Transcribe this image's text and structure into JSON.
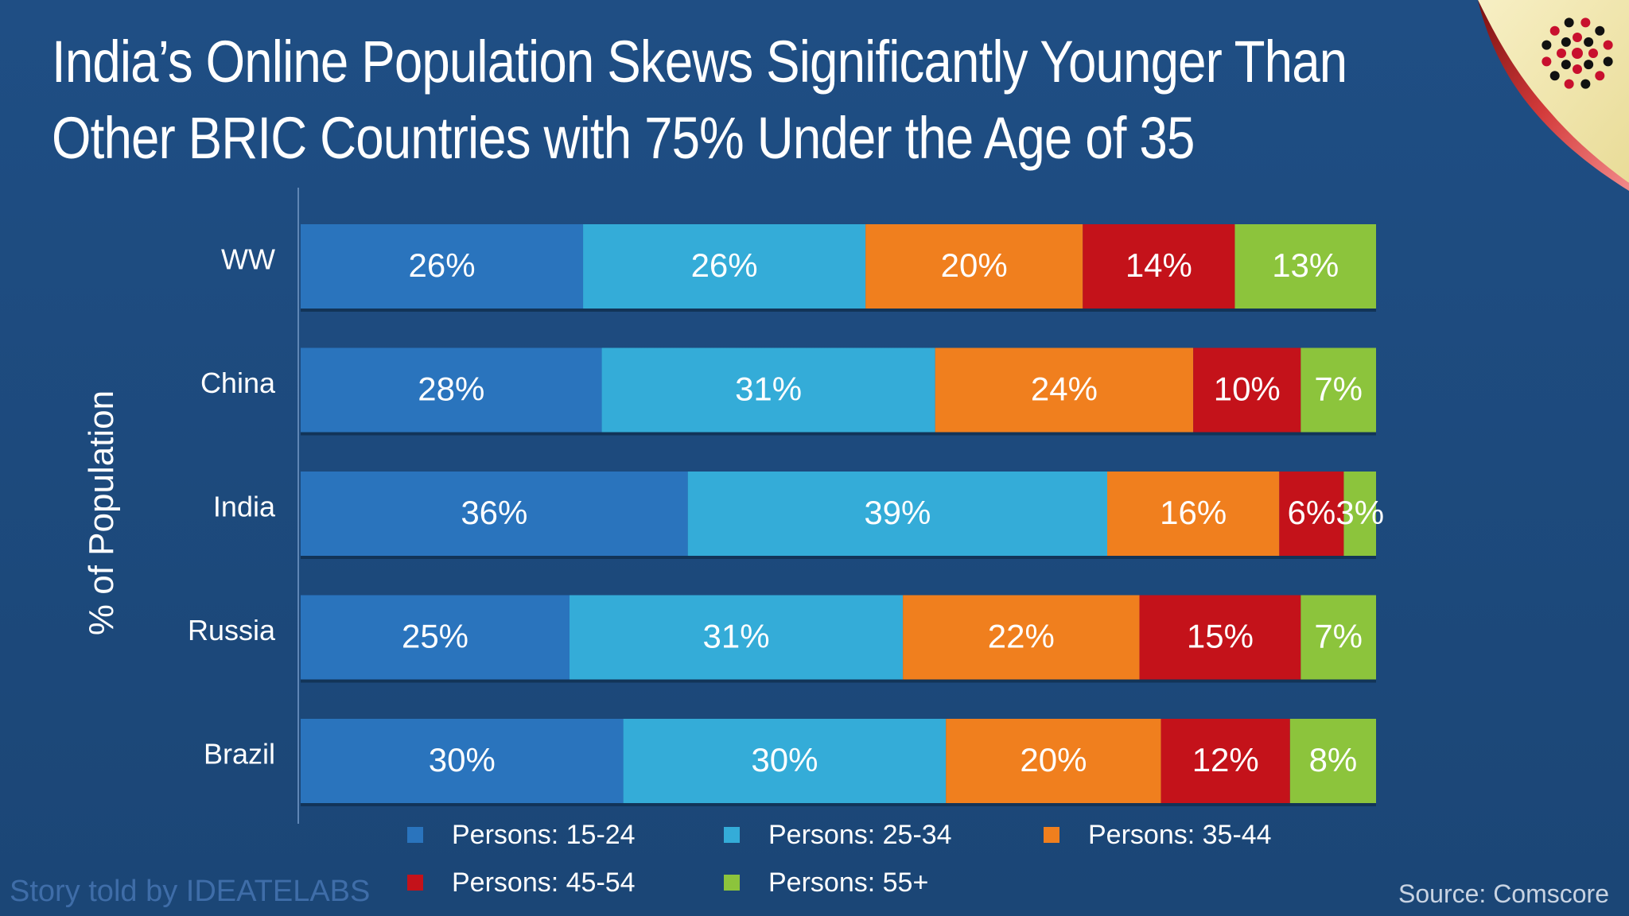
{
  "title_lines": [
    "India’s Online Population Skews Significantly Younger Than",
    "Other BRIC Countries with 75% Under the Age of 35"
  ],
  "footer": {
    "story": "Story told by IDEATELABS",
    "source": "Source: Comscore"
  },
  "colors": {
    "background": "#1d4a7c",
    "page_curl": "#f3e8a9",
    "logo": "#c8102e"
  },
  "chart_data": {
    "type": "bar",
    "orientation": "horizontal",
    "stacked": true,
    "title": "",
    "xlabel": "",
    "ylabel": "% of Population",
    "categories": [
      "WW",
      "China",
      "India",
      "Russia",
      "Brazil"
    ],
    "series": [
      {
        "name": "Persons: 15-24",
        "color": "#2a74bd",
        "values": [
          26,
          28,
          36,
          25,
          30
        ],
        "labels": [
          "26%",
          "28%",
          "36%",
          "25%",
          "30%"
        ]
      },
      {
        "name": "Persons: 25-34",
        "color": "#34acd8",
        "values": [
          26,
          31,
          39,
          31,
          30
        ],
        "labels": [
          "26%",
          "31%",
          "39%",
          "31%",
          "30%"
        ]
      },
      {
        "name": "Persons: 35-44",
        "color": "#f07f1e",
        "values": [
          20,
          24,
          16,
          22,
          20
        ],
        "labels": [
          "20%",
          "24%",
          "16%",
          "22%",
          "20%"
        ]
      },
      {
        "name": "Persons: 45-54",
        "color": "#c4121a",
        "values": [
          14,
          10,
          6,
          15,
          12
        ],
        "labels": [
          "14%",
          "10%",
          "6%",
          "15%",
          "12%"
        ]
      },
      {
        "name": "Persons: 55+",
        "color": "#8cc43c",
        "values": [
          13,
          7,
          3,
          7,
          8
        ],
        "labels": [
          "13%",
          "7%",
          "3%",
          "7%",
          "8%"
        ]
      }
    ],
    "legend_position": "bottom",
    "grid": false
  }
}
